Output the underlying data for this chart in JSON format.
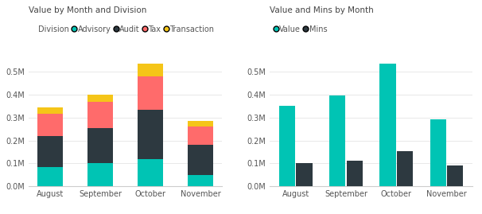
{
  "left_title": "Value by Month and Division",
  "right_title": "Value and Mins by Month",
  "months": [
    "August",
    "September",
    "October",
    "November"
  ],
  "stacked": {
    "Advisory": [
      0.085,
      0.1,
      0.12,
      0.05
    ],
    "Audit": [
      0.135,
      0.155,
      0.215,
      0.13
    ],
    "Tax": [
      0.095,
      0.115,
      0.145,
      0.08
    ],
    "Transaction": [
      0.03,
      0.03,
      0.055,
      0.025
    ]
  },
  "stacked_colors": {
    "Advisory": "#00C4B4",
    "Audit": "#2D3940",
    "Tax": "#FF6B6B",
    "Transaction": "#F5C518"
  },
  "clustered": {
    "Value": [
      0.35,
      0.398,
      0.535,
      0.292
    ],
    "Mins": [
      0.1,
      0.113,
      0.152,
      0.09
    ]
  },
  "clustered_colors": {
    "Value": "#00C4B4",
    "Mins": "#2D3940"
  },
  "ylim": [
    0,
    0.58
  ],
  "yticks": [
    0.0,
    0.1,
    0.2,
    0.3,
    0.4,
    0.5
  ],
  "ytick_labels": [
    "0.0M",
    "0.1M",
    "0.2M",
    "0.3M",
    "0.4M",
    "0.5M"
  ],
  "background_color": "#FFFFFF",
  "grid_color": "#E8E8E8",
  "title_fontsize": 7.5,
  "legend_fontsize": 7,
  "tick_fontsize": 7,
  "legend_label_division": "Division",
  "left_legend_items": [
    "Advisory",
    "Audit",
    "Tax",
    "Transaction"
  ],
  "right_legend_items": [
    "Value",
    "Mins"
  ]
}
